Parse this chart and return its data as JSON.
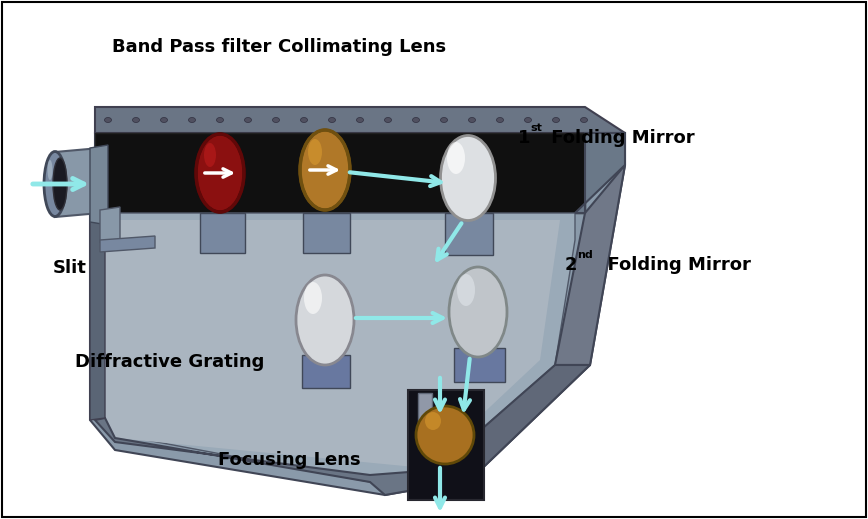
{
  "background_color": "#ffffff",
  "border_color": "#000000",
  "labels": {
    "band_pass_filter": "Band Pass filter",
    "collimating_lens": "Collimating Lens",
    "slit": "Slit",
    "diffractive_grating": "Diffractive Grating",
    "focusing_lens": "Focusing Lens"
  },
  "arrow_color": "#90e8e8",
  "font_size_label": 12,
  "font_weight": "bold",
  "body_top_color": "#8a9aaa",
  "body_face_color": "#9aabb8",
  "body_dark_color": "#5a6575",
  "body_bottom_color": "#6a7585",
  "black_color": "#101010",
  "lens_red": "#8B1010",
  "lens_brown": "#a06820",
  "lens_white": "#e4e4e4",
  "lens_gray": "#b8bcc0",
  "mount_color": "#5a6575"
}
